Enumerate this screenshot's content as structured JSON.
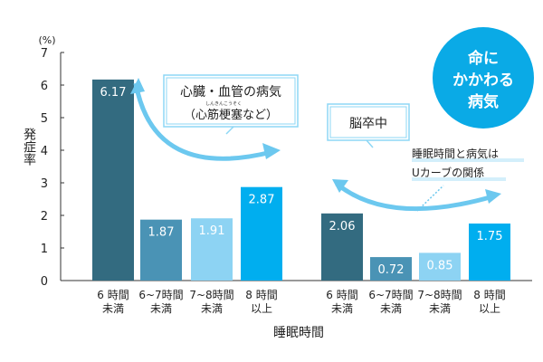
{
  "chart_data": {
    "type": "bar",
    "unit_label": "(%)",
    "ylabel": "発症率",
    "xlabel": "睡眠時間",
    "ylim": [
      0,
      7
    ],
    "yticks": [
      "0",
      "1",
      "2",
      "3",
      "4",
      "5",
      "6",
      "7"
    ],
    "categories": [
      [
        "6 時間",
        "未満"
      ],
      [
        "6~7時間",
        "未満"
      ],
      [
        "7~8時間",
        "未満"
      ],
      [
        "8 時間",
        "以上"
      ]
    ],
    "groups": [
      {
        "name": "心臓・血管の病気（心筋梗塞など）",
        "values": [
          6.17,
          1.87,
          1.91,
          2.87
        ],
        "labels": [
          "6.17",
          "1.87",
          "1.91",
          "2.87"
        ]
      },
      {
        "name": "脳卒中",
        "values": [
          2.06,
          0.72,
          0.85,
          1.75
        ],
        "labels": [
          "2.06",
          "0.72",
          "0.85",
          "1.75"
        ]
      }
    ],
    "colors": [
      "#336b80",
      "#4a93b5",
      "#8dd3f3",
      "#00aeef"
    ],
    "annotations": {
      "heart_line1": "心臓・血管の病気",
      "heart_ruby": "しんきんこうそく",
      "heart_line2": "（心筋梗塞など）",
      "stroke": "脳卒中",
      "note_line1": "睡眠時間と病気は",
      "note_line2": "Uカーブの関係",
      "badge": [
        "命に",
        "かかわる",
        "病気"
      ]
    }
  }
}
